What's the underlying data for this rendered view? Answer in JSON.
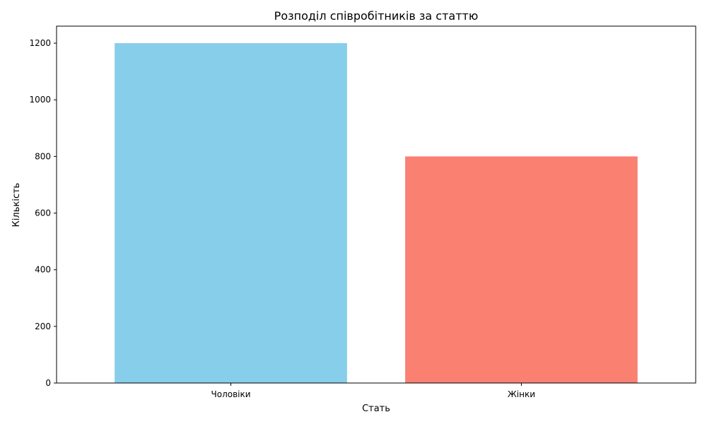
{
  "chart_data": {
    "type": "bar",
    "title": "Розподіл співробітників за статтю",
    "xlabel": "Стать",
    "ylabel": "Кількість",
    "categories": [
      "Чоловіки",
      "Жінки"
    ],
    "values": [
      1200,
      800
    ],
    "colors": [
      "#87CEEB",
      "#FA8072"
    ],
    "ylim": [
      0,
      1260
    ],
    "yticks": [
      0,
      200,
      400,
      600,
      800,
      1000,
      1200
    ],
    "ytick_labels": [
      "0",
      "200",
      "400",
      "600",
      "800",
      "1000",
      "1200"
    ],
    "grid": false,
    "legend": "none"
  }
}
